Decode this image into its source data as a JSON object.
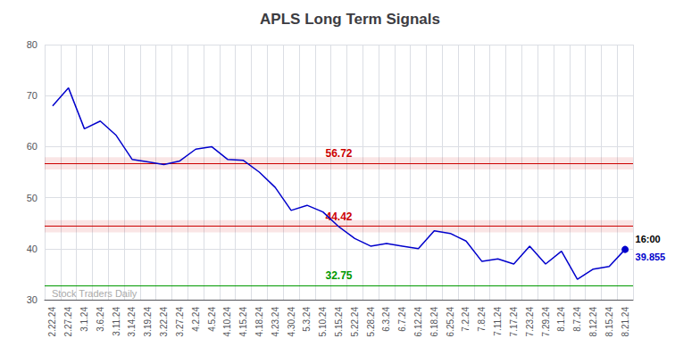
{
  "chart_data": {
    "type": "line",
    "title": "APLS Long Term Signals",
    "categories": [
      "2.22.24",
      "2.27.24",
      "3.1.24",
      "3.6.24",
      "3.11.24",
      "3.14.24",
      "3.19.24",
      "3.22.24",
      "3.27.24",
      "4.2.24",
      "4.5.24",
      "4.10.24",
      "4.15.24",
      "4.18.24",
      "4.23.24",
      "4.30.24",
      "5.3.24",
      "5.10.24",
      "5.15.24",
      "5.22.24",
      "5.28.24",
      "6.3.24",
      "6.7.24",
      "6.12.24",
      "6.18.24",
      "6.25.24",
      "7.2.24",
      "7.8.24",
      "7.11.24",
      "7.17.24",
      "7.23.24",
      "7.29.24",
      "8.1.24",
      "8.7.24",
      "8.12.24",
      "8.15.24",
      "8.21.24"
    ],
    "values": [
      68.0,
      71.5,
      63.5,
      65.0,
      62.2,
      57.5,
      57.0,
      56.5,
      57.2,
      59.5,
      60.0,
      57.5,
      57.3,
      55.0,
      52.0,
      47.5,
      48.5,
      47.2,
      44.3,
      42.0,
      40.5,
      41.0,
      40.5,
      40.0,
      43.5,
      43.0,
      41.5,
      37.5,
      38.0,
      37.0,
      40.5,
      37.0,
      39.5,
      34.0,
      36.0,
      36.5,
      39.855
    ],
    "color": "#0000cc",
    "hlines": [
      {
        "value": 56.72,
        "label": "56.72",
        "color": "#cc0000"
      },
      {
        "value": 44.42,
        "label": "44.42",
        "color": "#cc0000"
      },
      {
        "value": 32.75,
        "label": "32.75",
        "color": "#009900"
      }
    ],
    "bands": [
      {
        "from": 55.52,
        "to": 57.92,
        "color": "#cc0000"
      },
      {
        "from": 43.22,
        "to": 45.62,
        "color": "#cc0000"
      }
    ],
    "last_point_labels": [
      {
        "text": "16:00",
        "color": "#000000"
      },
      {
        "text": "39.855",
        "color": "#0000cc"
      }
    ],
    "watermark": {
      "text": "Stock Traders Daily",
      "color": "#aaaaaa"
    },
    "ylim": [
      30,
      80
    ],
    "yticks": [
      30,
      40,
      50,
      60,
      70,
      80
    ],
    "grid": true
  }
}
